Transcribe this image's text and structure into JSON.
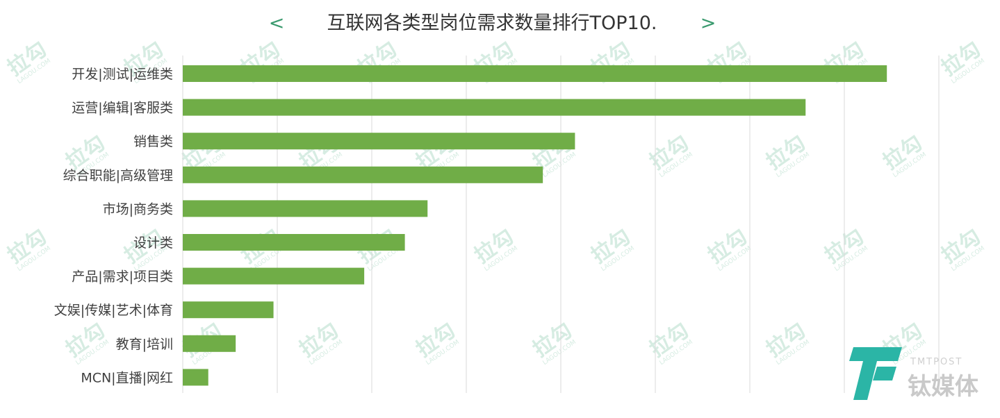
{
  "chart_data": {
    "type": "bar",
    "orientation": "horizontal",
    "title": "互联网各类型岗位需求数量排行TOP10.",
    "title_prefix": "<",
    "title_suffix": ">",
    "categories": [
      "开发|测试|运维类",
      "运营|编辑|客服类",
      "销售类",
      "综合职能|高级管理",
      "市场|商务类",
      "设计类",
      "产品|需求|项目类",
      "文娱|传媒|艺术|体育",
      "教育|培训",
      "MCN|直播|网红"
    ],
    "values": [
      7450,
      6590,
      4150,
      3810,
      2590,
      2350,
      1920,
      960,
      560,
      270
    ],
    "xlim": [
      0,
      8000
    ],
    "x_gridlines": [
      1000,
      2000,
      3000,
      4000,
      5000,
      6000,
      7000,
      8000
    ],
    "grid": true,
    "bar_color": "#70ad47"
  },
  "watermark": {
    "text": "拉勾",
    "subtext": "LAGOU.COM",
    "color": "#d6ece2"
  },
  "logo": {
    "mark": "T",
    "english": "TMTPOST",
    "chinese": "钛媒体",
    "mark_color": "#2bb5a6"
  }
}
